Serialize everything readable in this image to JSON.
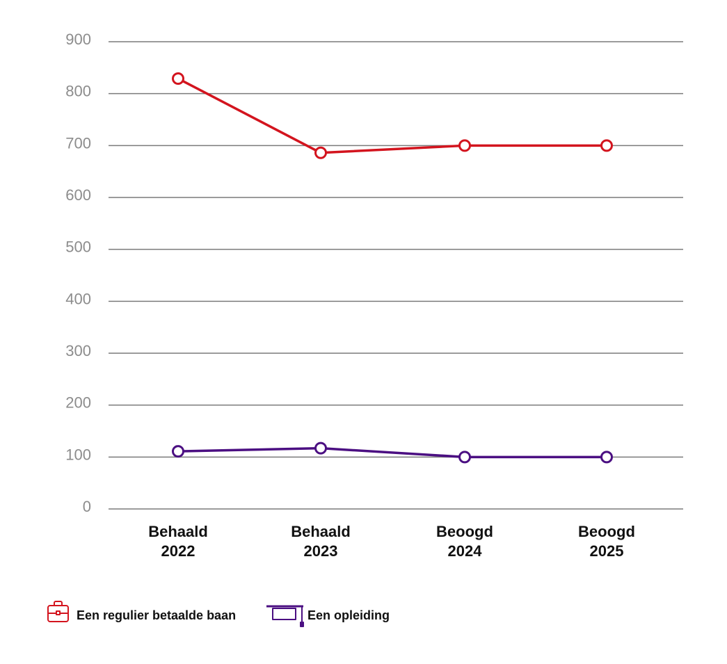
{
  "colors": {
    "grid": "#7a7a7a",
    "axis_text": "#8c8c8c",
    "category_text": "#111111",
    "background": "#ffffff"
  },
  "chart_data": {
    "type": "line",
    "categories": [
      [
        "Behaald",
        "2022"
      ],
      [
        "Behaald",
        "2023"
      ],
      [
        "Beoogd",
        "2024"
      ],
      [
        "Beoogd",
        "2025"
      ]
    ],
    "series": [
      {
        "name": "Een regulier betaalde baan",
        "color": "#d3141e",
        "icon": "briefcase-icon",
        "values": [
          829,
          686,
          700,
          700
        ]
      },
      {
        "name": "Een opleiding",
        "color": "#4b0f82",
        "icon": "graduation-cap-icon",
        "values": [
          111,
          117,
          100,
          100
        ]
      }
    ],
    "yticks": [
      0,
      100,
      200,
      300,
      400,
      500,
      600,
      700,
      800,
      900
    ],
    "ylim": [
      0,
      900
    ],
    "grid": true,
    "legend_position": "bottom-left"
  }
}
